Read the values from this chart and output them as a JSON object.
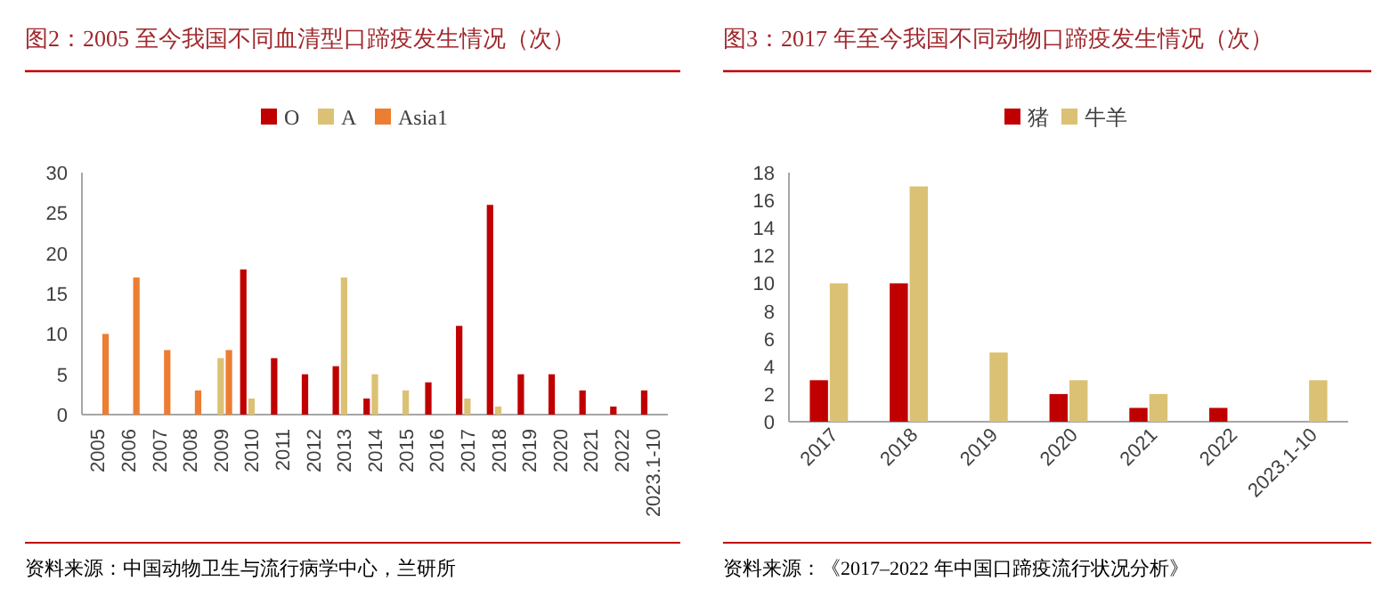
{
  "chart_data": [
    {
      "type": "bar",
      "title": "图2：2005 至今我国不同血清型口蹄疫发生情况（次）",
      "categories": [
        "2005",
        "2006",
        "2007",
        "2008",
        "2009",
        "2010",
        "2011",
        "2012",
        "2013",
        "2014",
        "2015",
        "2016",
        "2017",
        "2018",
        "2019",
        "2020",
        "2021",
        "2022",
        "2023.1-10"
      ],
      "series": [
        {
          "name": "O",
          "color": "#c00000",
          "values": [
            0,
            0,
            0,
            0,
            0,
            18,
            7,
            5,
            6,
            2,
            0,
            4,
            11,
            26,
            5,
            5,
            3,
            1,
            3
          ]
        },
        {
          "name": "A",
          "color": "#dbc173",
          "values": [
            0,
            0,
            0,
            0,
            7,
            2,
            0,
            0,
            17,
            5,
            3,
            0,
            2,
            1,
            0,
            0,
            0,
            0,
            0
          ]
        },
        {
          "name": "Asia1",
          "color": "#ed7d31",
          "values": [
            10,
            17,
            8,
            3,
            8,
            0,
            0,
            0,
            0,
            0,
            0,
            0,
            0,
            0,
            0,
            0,
            0,
            0,
            0
          ]
        }
      ],
      "ylim": [
        0,
        30
      ],
      "yticks": [
        0,
        5,
        10,
        15,
        20,
        25,
        30
      ],
      "legend": "top",
      "annotations": [
        "资料来源：中国动物卫生与流行病学中心，兰研所"
      ]
    },
    {
      "type": "bar",
      "title": "图3：2017 年至今我国不同动物口蹄疫发生情况（次）",
      "categories": [
        "2017",
        "2018",
        "2019",
        "2020",
        "2021",
        "2022",
        "2023.1-10"
      ],
      "series": [
        {
          "name": "猪",
          "color": "#c00000",
          "values": [
            3,
            10,
            0,
            2,
            1,
            1,
            0
          ]
        },
        {
          "name": "牛羊",
          "color": "#dbc173",
          "values": [
            10,
            17,
            5,
            3,
            2,
            0,
            3
          ]
        }
      ],
      "ylim": [
        0,
        18
      ],
      "yticks": [
        0,
        2,
        4,
        6,
        8,
        10,
        12,
        14,
        16,
        18
      ],
      "legend": "top",
      "annotations": [
        "资料来源：《2017–2022 年中国口蹄疫流行状况分析》"
      ]
    }
  ]
}
